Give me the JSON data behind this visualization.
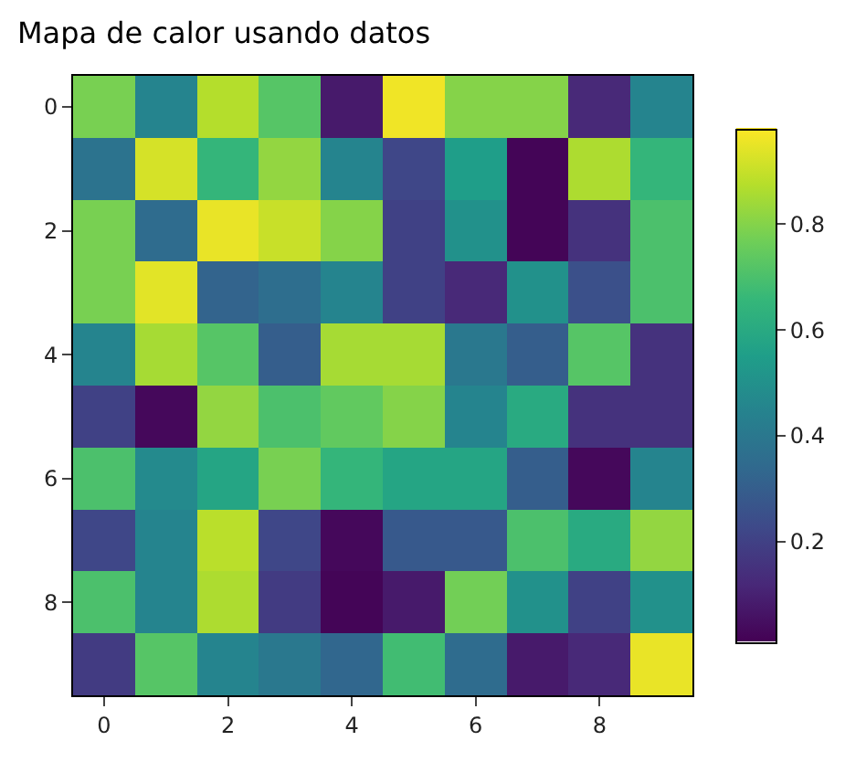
{
  "chart_data": {
    "type": "heatmap",
    "title": "Mapa de calor usando datos",
    "categories": [
      "0",
      null,
      "2",
      null,
      "4",
      null,
      "6",
      null,
      "8",
      null
    ],
    "y_categories": [
      "0",
      null,
      "2",
      null,
      "4",
      null,
      "6",
      null,
      "8",
      null
    ],
    "cells": [
      [
        0.78,
        0.45,
        0.87,
        0.72,
        0.08,
        0.96,
        0.8,
        0.8,
        0.12,
        0.45
      ],
      [
        0.38,
        0.92,
        0.65,
        0.82,
        0.45,
        0.22,
        0.55,
        0.02,
        0.86,
        0.65
      ],
      [
        0.78,
        0.35,
        0.95,
        0.9,
        0.8,
        0.2,
        0.5,
        0.02,
        0.15,
        0.7
      ],
      [
        0.78,
        0.94,
        0.32,
        0.36,
        0.45,
        0.2,
        0.12,
        0.5,
        0.25,
        0.7
      ],
      [
        0.45,
        0.85,
        0.72,
        0.3,
        0.85,
        0.85,
        0.4,
        0.3,
        0.72,
        0.15
      ],
      [
        0.2,
        0.03,
        0.82,
        0.7,
        0.74,
        0.8,
        0.45,
        0.6,
        0.15,
        0.15
      ],
      [
        0.7,
        0.47,
        0.58,
        0.78,
        0.65,
        0.58,
        0.58,
        0.3,
        0.03,
        0.45
      ],
      [
        0.22,
        0.45,
        0.88,
        0.22,
        0.03,
        0.28,
        0.28,
        0.7,
        0.6,
        0.82
      ],
      [
        0.7,
        0.45,
        0.86,
        0.18,
        0.02,
        0.08,
        0.77,
        0.5,
        0.2,
        0.5
      ],
      [
        0.18,
        0.72,
        0.45,
        0.4,
        0.33,
        0.68,
        0.35,
        0.08,
        0.12,
        0.95
      ]
    ],
    "clim": [
      0.01,
      0.98
    ],
    "cticks": [
      0.2,
      0.4,
      0.6,
      0.8
    ]
  }
}
